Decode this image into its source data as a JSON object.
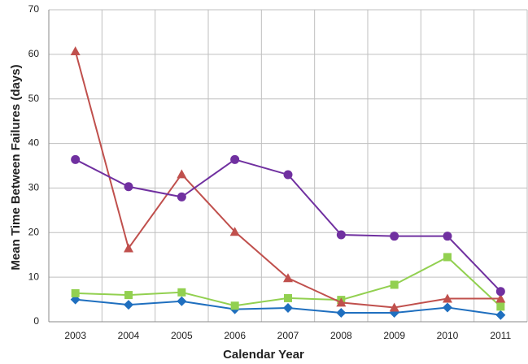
{
  "chart_data": {
    "type": "line",
    "x_label": "Calendar Year",
    "y_label": "Mean Time Between Failures (days)",
    "categories": [
      "2003",
      "2004",
      "2005",
      "2006",
      "2007",
      "2008",
      "2009",
      "2010",
      "2011"
    ],
    "series": [
      {
        "color": "#1f6fbf",
        "marker": "diamond",
        "values": [
          5.0,
          3.8,
          4.6,
          2.8,
          3.1,
          2.0,
          2.0,
          3.2,
          1.5
        ]
      },
      {
        "color": "#92d050",
        "marker": "square",
        "values": [
          6.4,
          6.0,
          6.6,
          3.6,
          5.3,
          4.9,
          8.3,
          14.5,
          3.4
        ]
      },
      {
        "color": "#c0504d",
        "marker": "triangle",
        "values": [
          60.7,
          16.5,
          33.1,
          20.2,
          9.8,
          4.3,
          3.2,
          5.2,
          5.2
        ]
      },
      {
        "color": "#7030a0",
        "marker": "circle",
        "values": [
          36.4,
          30.3,
          28.0,
          36.4,
          33.0,
          19.5,
          19.2,
          19.2,
          6.8
        ]
      }
    ],
    "ylim": [
      0,
      70
    ],
    "yticks": [
      0,
      10,
      20,
      30,
      40,
      50,
      60,
      70
    ],
    "grid": true
  }
}
